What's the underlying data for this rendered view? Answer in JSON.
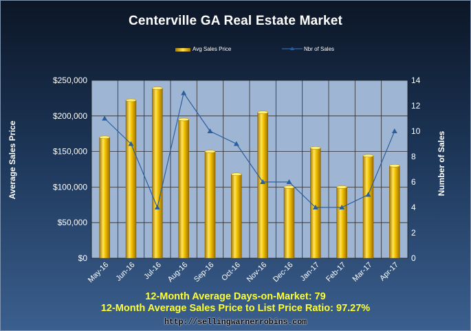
{
  "colors": {
    "plot_bg": "#9fb5d4",
    "bar": "#f5c400",
    "line": "#2a5f9e",
    "footer_text": "#ffff33"
  },
  "legend": {
    "bar_label": "Avg Sales Price",
    "line_label": "Nbr of Sales"
  },
  "footer": {
    "line1": "12-Month Average Days-on-Market: 79",
    "line2": "12-Month Average Sales Price to List Price Ratio: 97.27%",
    "url": "http://sellingwarnerrobins.com"
  },
  "chart_data": {
    "type": "bar",
    "title": "Centerville GA Real Estate Market",
    "categories": [
      "May-16",
      "Jun-16",
      "Jul-16",
      "Aug-16",
      "Sep-16",
      "Oct-16",
      "Nov-16",
      "Dec-16",
      "Jan-17",
      "Feb-17",
      "Mar-17",
      "Apr-17"
    ],
    "series": [
      {
        "name": "Avg Sales Price",
        "type": "bar",
        "axis": "left",
        "values": [
          170000,
          222000,
          239000,
          195000,
          150000,
          118000,
          205000,
          100000,
          155000,
          100000,
          144000,
          130000
        ]
      },
      {
        "name": "Nbr of Sales",
        "type": "line",
        "axis": "right",
        "values": [
          11,
          9,
          4,
          13,
          10,
          9,
          6,
          6,
          4,
          4,
          5,
          10
        ]
      }
    ],
    "ylabel": "Average Sales Price",
    "y2label": "Number of Sales",
    "ylim": [
      0,
      250000
    ],
    "y2lim": [
      0,
      14
    ],
    "yticks": [
      "$0",
      "$50,000",
      "$100,000",
      "$150,000",
      "$200,000",
      "$250,000"
    ],
    "y2ticks": [
      "0",
      "2",
      "4",
      "6",
      "8",
      "10",
      "12",
      "14"
    ],
    "grid": true,
    "legend_position": "top"
  }
}
